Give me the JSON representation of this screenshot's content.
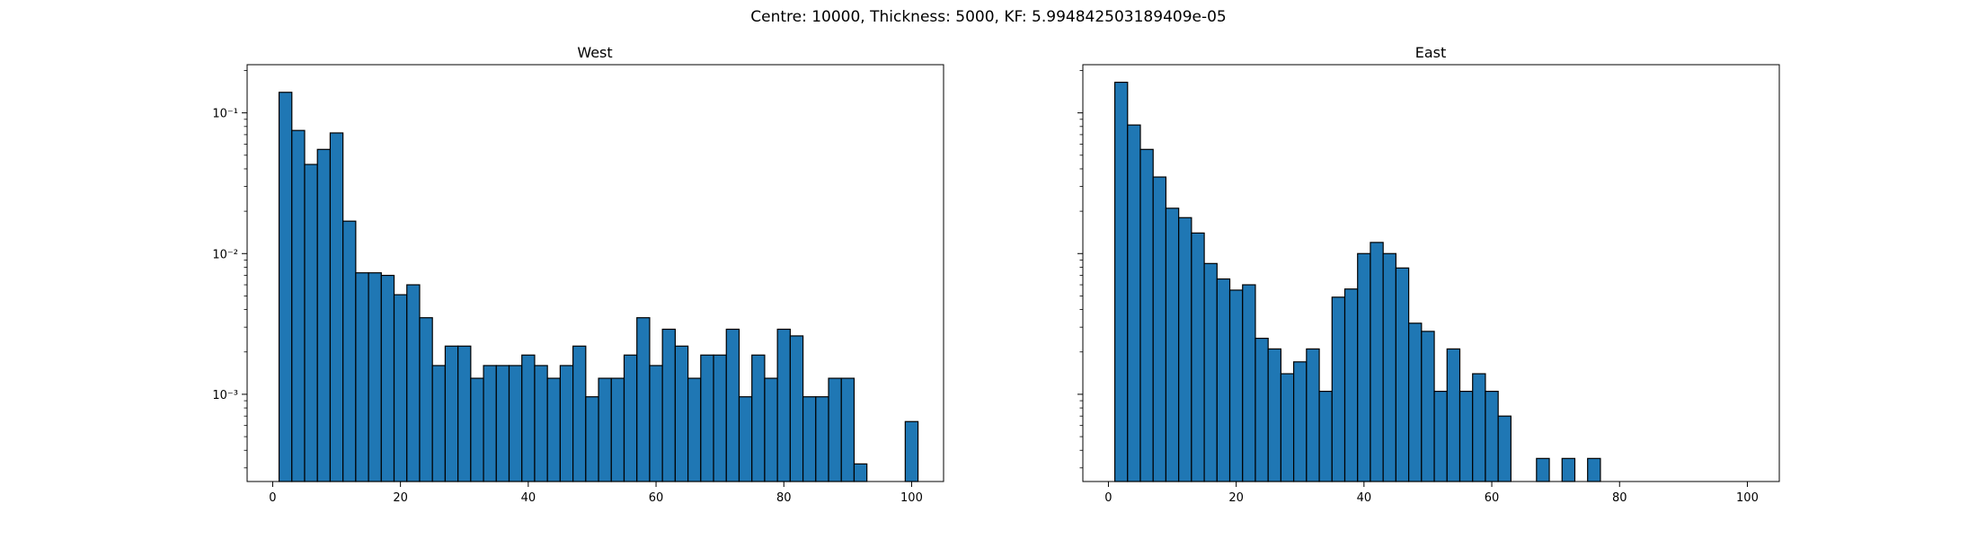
{
  "figure": {
    "suptitle": "Centre: 10000, Thickness: 5000, KF: 5.994842503189409e-05"
  },
  "colors": {
    "bar": "#1f77b4",
    "edge": "#000000"
  },
  "chart_data": [
    {
      "type": "bar",
      "title": "West",
      "xlabel": "",
      "ylabel": "",
      "y_scale": "log",
      "xlim": [
        -4,
        105
      ],
      "ylim": [
        0.00024,
        0.22
      ],
      "bin_width": 2.0,
      "bin_starts": [
        1,
        3,
        5,
        7,
        9,
        11,
        13,
        15,
        17,
        19,
        21,
        23,
        25,
        27,
        29,
        31,
        33,
        35,
        37,
        39,
        41,
        43,
        45,
        47,
        49,
        51,
        53,
        55,
        57,
        59,
        61,
        63,
        65,
        67,
        69,
        71,
        73,
        75,
        77,
        79,
        81,
        83,
        85,
        87,
        89,
        91,
        93,
        95,
        97,
        99
      ],
      "values": [
        0.14,
        0.075,
        0.043,
        0.055,
        0.072,
        0.017,
        0.0073,
        0.0073,
        0.007,
        0.0051,
        0.006,
        0.0035,
        0.0016,
        0.0022,
        0.0022,
        0.0013,
        0.0016,
        0.0016,
        0.0016,
        0.0019,
        0.0016,
        0.0013,
        0.0016,
        0.0022,
        0.00096,
        0.0013,
        0.0013,
        0.0019,
        0.0035,
        0.0016,
        0.0029,
        0.0022,
        0.0013,
        0.0019,
        0.0019,
        0.0029,
        0.00096,
        0.0019,
        0.0013,
        0.0029,
        0.0026,
        0.00096,
        0.00096,
        0.0013,
        0.0013,
        0.00032,
        0,
        0,
        0,
        0.00064
      ],
      "x_ticks": [
        0,
        20,
        40,
        60,
        80,
        100
      ],
      "x_tick_labels": [
        "0",
        "20",
        "40",
        "60",
        "80",
        "100"
      ],
      "y_ticks": [
        0.001,
        0.01,
        0.1
      ],
      "y_tick_labels": [
        "10⁻³",
        "10⁻²",
        "10⁻¹"
      ],
      "grid": false
    },
    {
      "type": "bar",
      "title": "East",
      "xlabel": "",
      "ylabel": "",
      "y_scale": "log",
      "xlim": [
        -4,
        105
      ],
      "ylim": [
        0.00024,
        0.22
      ],
      "bin_width": 2.0,
      "bin_starts": [
        1,
        3,
        5,
        7,
        9,
        11,
        13,
        15,
        17,
        19,
        21,
        23,
        25,
        27,
        29,
        31,
        33,
        35,
        37,
        39,
        41,
        43,
        45,
        47,
        49,
        51,
        53,
        55,
        57,
        59,
        61,
        63,
        65,
        67,
        69,
        71,
        73,
        75,
        77,
        79,
        81,
        83,
        85,
        87,
        89,
        91,
        93,
        95,
        97,
        99
      ],
      "values": [
        0.165,
        0.082,
        0.055,
        0.035,
        0.021,
        0.018,
        0.014,
        0.0085,
        0.0066,
        0.0055,
        0.006,
        0.0025,
        0.0021,
        0.0014,
        0.0017,
        0.0021,
        0.00105,
        0.0049,
        0.0056,
        0.01,
        0.012,
        0.01,
        0.0079,
        0.0032,
        0.0028,
        0.00105,
        0.0021,
        0.00105,
        0.0014,
        0.00105,
        0.0007,
        0,
        0,
        0.00035,
        0,
        0.00035,
        0,
        0.00035,
        0,
        0,
        0,
        0,
        0,
        0,
        0,
        0,
        0,
        0,
        0,
        0
      ],
      "x_ticks": [
        0,
        20,
        40,
        60,
        80,
        100
      ],
      "x_tick_labels": [
        "0",
        "20",
        "40",
        "60",
        "80",
        "100"
      ],
      "y_ticks": [
        0.001,
        0.01,
        0.1
      ],
      "y_tick_labels": [
        "",
        "",
        ""
      ],
      "grid": false
    }
  ]
}
